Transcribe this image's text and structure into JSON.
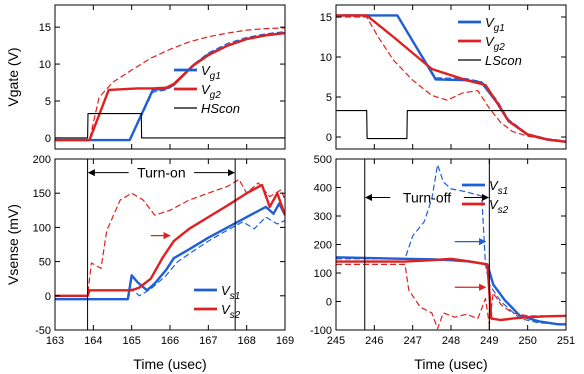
{
  "chart_data": [
    {
      "type": "line",
      "panel": "top-left",
      "ylabel": "Vgate (V)",
      "xlim": [
        163,
        169
      ],
      "ylim": [
        -1.5,
        18
      ],
      "yticks": [
        0,
        5,
        10,
        15
      ],
      "legend": [
        {
          "label": "V",
          "sub": "g1",
          "color": "#1f5fd6",
          "style": "solid"
        },
        {
          "label": "V",
          "sub": "g2",
          "color": "#e02020",
          "style": "solid"
        },
        {
          "label": "HScon",
          "sub": "",
          "color": "#000000",
          "style": "solid"
        }
      ],
      "series": [
        {
          "color": "#1f5fd6",
          "dash": false,
          "width": 2.4,
          "x": [
            163,
            164.95,
            165.55,
            165.9,
            166.1,
            166.6,
            167,
            167.5,
            168,
            168.5,
            169
          ],
          "y": [
            -0.3,
            -0.3,
            6.5,
            6.7,
            7.2,
            9.8,
            11.3,
            12.5,
            13.4,
            13.9,
            14.2
          ]
        },
        {
          "color": "#1f5fd6",
          "dash": true,
          "width": 1.2,
          "x": [
            163,
            164.95,
            165.55,
            165.9,
            166.1,
            166.6,
            167,
            167.5,
            168,
            168.5,
            169
          ],
          "y": [
            -0.3,
            -0.3,
            6.2,
            6.5,
            7.1,
            9.9,
            11.5,
            12.8,
            13.6,
            14.1,
            14.4
          ]
        },
        {
          "color": "#e02020",
          "dash": false,
          "width": 2.4,
          "x": [
            163,
            163.9,
            164.4,
            165.15,
            165.55,
            165.9,
            166.1,
            166.6,
            167,
            167.5,
            168,
            168.5,
            169
          ],
          "y": [
            -0.3,
            -0.3,
            6.5,
            6.7,
            6.7,
            6.8,
            7.3,
            9.8,
            11.2,
            12.5,
            13.4,
            13.9,
            14.2
          ]
        },
        {
          "color": "#e02020",
          "dash": true,
          "width": 1.2,
          "x": [
            163,
            163.9,
            164.15,
            164.5,
            165,
            165.5,
            166,
            166.5,
            167,
            167.5,
            168,
            168.5,
            169
          ],
          "y": [
            -0.3,
            -0.3,
            5.5,
            7.5,
            9.2,
            10.8,
            12,
            13,
            13.7,
            14.2,
            14.6,
            14.8,
            14.9
          ]
        },
        {
          "color": "#000000",
          "dash": false,
          "width": 1.1,
          "x": [
            163,
            163.85,
            163.86,
            165.25,
            165.26,
            169
          ],
          "y": [
            0,
            0,
            3.3,
            3.3,
            0,
            0
          ]
        }
      ]
    },
    {
      "type": "line",
      "panel": "top-right",
      "ylabel": "",
      "xlim": [
        245,
        251
      ],
      "ylim": [
        -1.5,
        16.5
      ],
      "yticks": [
        0,
        5,
        10,
        15
      ],
      "legend": [
        {
          "label": "V",
          "sub": "g1",
          "color": "#1f5fd6",
          "style": "solid"
        },
        {
          "label": "V",
          "sub": "g2",
          "color": "#e02020",
          "style": "solid"
        },
        {
          "label": "LScon",
          "sub": "",
          "color": "#000000",
          "style": "solid"
        }
      ],
      "series": [
        {
          "color": "#1f5fd6",
          "dash": false,
          "width": 2.4,
          "x": [
            245,
            246.6,
            247.6,
            248.4,
            248.8,
            249.2,
            249.5,
            250,
            250.5,
            251
          ],
          "y": [
            15.2,
            15.2,
            7.2,
            7.1,
            6.8,
            4.3,
            2,
            0.3,
            -0.3,
            -0.6
          ]
        },
        {
          "color": "#1f5fd6",
          "dash": true,
          "width": 1.2,
          "x": [
            245,
            246.6,
            247.6,
            248.4,
            248.8,
            249.2,
            249.5,
            250,
            250.5,
            251
          ],
          "y": [
            15.2,
            15.2,
            7.4,
            7.3,
            6.9,
            4.6,
            2.2,
            0.4,
            -0.2,
            -0.5
          ]
        },
        {
          "color": "#e02020",
          "dash": false,
          "width": 2.4,
          "x": [
            245,
            245.8,
            246.5,
            247.5,
            248.4,
            248.9,
            249.2,
            249.5,
            250,
            250.5,
            251
          ],
          "y": [
            15.2,
            15.2,
            12.5,
            8.5,
            7.1,
            6.5,
            4.3,
            2,
            0.3,
            -0.3,
            -0.6
          ]
        },
        {
          "color": "#e02020",
          "dash": true,
          "width": 1.2,
          "x": [
            245,
            245.8,
            246.1,
            246.5,
            247,
            247.5,
            247.9,
            248.3,
            248.7,
            249,
            249.3,
            249.6,
            250,
            250.5,
            251
          ],
          "y": [
            15,
            15,
            12.5,
            9.6,
            7.1,
            5.2,
            4.6,
            5.5,
            5.8,
            3.6,
            1.8,
            0.7,
            0.1,
            -0.3,
            -0.6
          ]
        },
        {
          "color": "#000000",
          "dash": false,
          "width": 1.1,
          "x": [
            245,
            245.8,
            245.81,
            246.85,
            246.86,
            251
          ],
          "y": [
            3.3,
            3.3,
            -0.2,
            -0.2,
            3.3,
            3.3
          ]
        }
      ]
    },
    {
      "type": "line",
      "panel": "bottom-left",
      "ylabel": "Vsense (mV)",
      "xlabel": "Time (usec)",
      "xlim": [
        163,
        169
      ],
      "ylim": [
        -50,
        200
      ],
      "xticks": [
        163,
        164,
        165,
        166,
        167,
        168,
        169
      ],
      "yticks": [
        -50,
        0,
        50,
        100,
        150,
        200
      ],
      "annotation": {
        "text": "Turn-on",
        "x0": 163.85,
        "x1": 167.7,
        "y": 180
      },
      "arrows": [
        {
          "x0": 165.5,
          "x1": 166,
          "y": 88,
          "color": "#e02020"
        }
      ],
      "legend": [
        {
          "label": "V",
          "sub": "s1",
          "color": "#1f5fd6",
          "style": "solid"
        },
        {
          "label": "V",
          "sub": "s2",
          "color": "#e02020",
          "style": "solid"
        }
      ],
      "series": [
        {
          "color": "#1f5fd6",
          "dash": false,
          "width": 2.4,
          "x": [
            163,
            164.9,
            165.0,
            165.15,
            165.4,
            165.6,
            165.9,
            166.1,
            166.5,
            167,
            167.5,
            168,
            168.5,
            168.7,
            168.85,
            169
          ],
          "y": [
            -5,
            -5,
            30,
            20,
            8,
            18,
            38,
            55,
            68,
            85,
            100,
            115,
            130,
            120,
            135,
            118
          ]
        },
        {
          "color": "#1f5fd6",
          "dash": true,
          "width": 1.2,
          "x": [
            163,
            164.9,
            165.0,
            165.2,
            165.5,
            165.9,
            166.2,
            166.6,
            167,
            167.5,
            167.9,
            168.2,
            168.5,
            168.8,
            169
          ],
          "y": [
            -5,
            -5,
            10,
            0,
            10,
            30,
            50,
            65,
            80,
            96,
            108,
            98,
            115,
            105,
            110
          ]
        },
        {
          "color": "#e02020",
          "dash": false,
          "width": 2.4,
          "x": [
            163,
            163.85,
            163.9,
            164.9,
            165.0,
            165.2,
            165.5,
            165.8,
            166.1,
            166.5,
            167,
            167.5,
            168,
            168.4,
            168.6,
            168.8,
            169
          ],
          "y": [
            0,
            0,
            8,
            8,
            8,
            12,
            25,
            55,
            80,
            98,
            115,
            132,
            150,
            162,
            130,
            150,
            118
          ]
        },
        {
          "color": "#e02020",
          "dash": true,
          "width": 1.2,
          "x": [
            163,
            163.85,
            163.95,
            164.2,
            164.35,
            164.7,
            165.0,
            165.3,
            165.6,
            166,
            166.5,
            167,
            167.5,
            167.8,
            168,
            168.3,
            168.6,
            168.9,
            169
          ],
          "y": [
            0,
            0,
            48,
            40,
            95,
            140,
            150,
            140,
            118,
            125,
            140,
            150,
            160,
            170,
            150,
            165,
            145,
            155,
            140
          ]
        }
      ]
    },
    {
      "type": "line",
      "panel": "bottom-right",
      "ylabel": "",
      "xlabel": "Time (usec)",
      "xlim": [
        245,
        251
      ],
      "ylim": [
        -100,
        500
      ],
      "xticks": [
        245,
        246,
        247,
        248,
        249,
        250,
        251
      ],
      "yticks": [
        -100,
        0,
        100,
        200,
        300,
        400,
        500
      ],
      "annotation": {
        "text": "Turn-off",
        "x0": 245.75,
        "x1": 249.0,
        "y": 365
      },
      "arrows": [
        {
          "x0": 248.1,
          "x1": 248.9,
          "y": 210,
          "color": "#1f5fd6"
        },
        {
          "x0": 248.1,
          "x1": 248.9,
          "y": 50,
          "color": "#e02020"
        }
      ],
      "legend": [
        {
          "label": "V",
          "sub": "s1",
          "color": "#1f5fd6",
          "style": "solid"
        },
        {
          "label": "V",
          "sub": "s2",
          "color": "#e02020",
          "style": "solid"
        }
      ],
      "series": [
        {
          "color": "#1f5fd6",
          "dash": false,
          "width": 2.4,
          "x": [
            245,
            246.8,
            247.5,
            248,
            248.5,
            248.95,
            249.1,
            249.4,
            249.8,
            250.3,
            250.8,
            251
          ],
          "y": [
            155,
            150,
            148,
            145,
            140,
            130,
            60,
            5,
            -50,
            -70,
            -80,
            -80
          ]
        },
        {
          "color": "#1f5fd6",
          "dash": true,
          "width": 1.2,
          "x": [
            245,
            246.8,
            247.0,
            247.3,
            247.5,
            247.65,
            247.8,
            248,
            248.4,
            248.8,
            248.9,
            249.0,
            249.3,
            249.8,
            250.3,
            251
          ],
          "y": [
            150,
            150,
            230,
            280,
            360,
            480,
            420,
            395,
            385,
            370,
            130,
            60,
            0,
            -60,
            -75,
            -80
          ]
        },
        {
          "color": "#e02020",
          "dash": false,
          "width": 2.4,
          "x": [
            245,
            246.8,
            247.5,
            248,
            248.5,
            248.95,
            249.05,
            249.3,
            249.6,
            250,
            250.5,
            251
          ],
          "y": [
            140,
            140,
            145,
            150,
            140,
            130,
            -60,
            -65,
            -60,
            -55,
            -52,
            -50
          ]
        },
        {
          "color": "#e02020",
          "dash": true,
          "width": 1.2,
          "x": [
            245,
            246.8,
            246.9,
            247.2,
            247.5,
            247.65,
            247.8,
            248.1,
            248.4,
            248.7,
            248.9,
            249.0,
            249.1,
            249.3,
            249.6,
            250,
            251
          ],
          "y": [
            130,
            130,
            40,
            -20,
            -40,
            -95,
            -40,
            -55,
            -45,
            -60,
            10,
            -80,
            30,
            -10,
            -40,
            -50,
            -50
          ]
        }
      ]
    }
  ]
}
